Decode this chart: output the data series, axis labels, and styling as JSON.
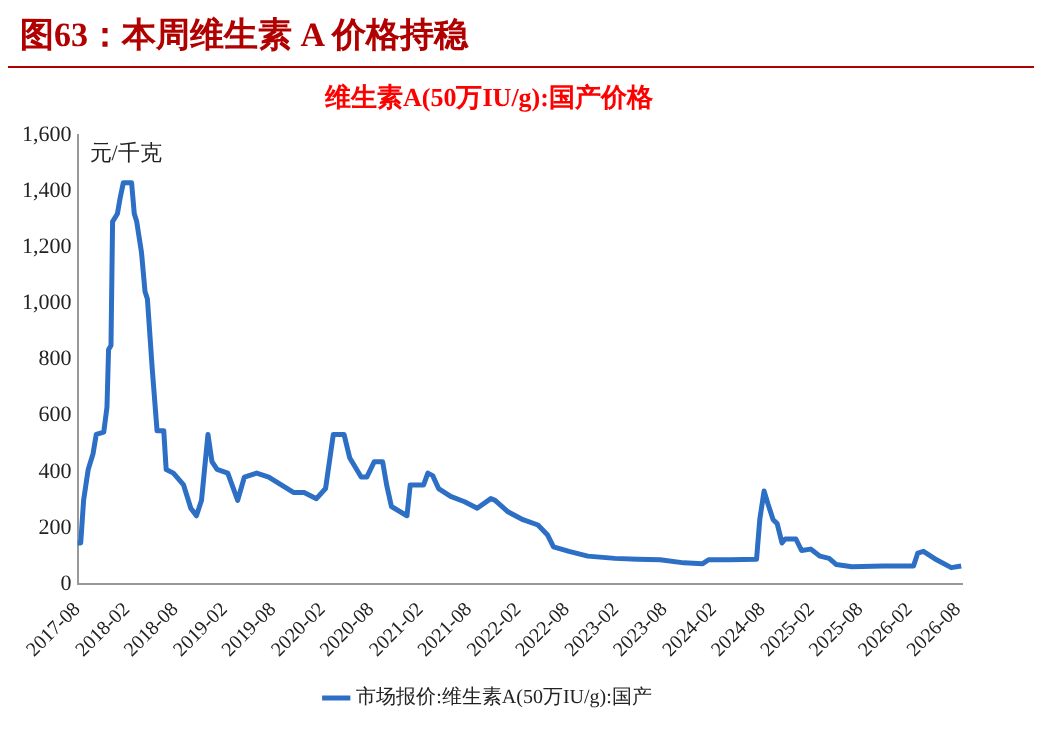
{
  "chart_data": {
    "type": "line",
    "title": "图63：本周维生素 A 价格持稳",
    "subtitle": "维生素A(50万IU/g):国产价格",
    "ylabel": "元/千克",
    "x": [
      "2017-08-01",
      "2017-08-13",
      "2017-08-24",
      "2017-09-10",
      "2017-09-28",
      "2017-10-10",
      "2017-11-07",
      "2017-11-19",
      "2017-11-25",
      "2017-12-04",
      "2017-12-10",
      "2017-12-28",
      "2018-01-07",
      "2018-01-19",
      "2018-02-19",
      "2018-03-01",
      "2018-03-10",
      "2018-03-28",
      "2018-04-10",
      "2018-04-19",
      "2018-05-07",
      "2018-05-25",
      "2018-06-19",
      "2018-06-28",
      "2018-07-25",
      "2018-09-01",
      "2018-09-28",
      "2018-10-19",
      "2018-11-07",
      "2018-12-01",
      "2018-12-16",
      "2019-01-04",
      "2019-02-13",
      "2019-03-22",
      "2019-04-16",
      "2019-06-01",
      "2019-07-16",
      "2019-10-16",
      "2019-11-25",
      "2020-01-10",
      "2020-02-13",
      "2020-03-13",
      "2020-04-22",
      "2020-05-13",
      "2020-06-25",
      "2020-07-16",
      "2020-08-13",
      "2020-09-13",
      "2020-09-28",
      "2020-10-16",
      "2020-12-13",
      "2020-12-25",
      "2021-02-13",
      "2021-03-01",
      "2021-03-19",
      "2021-04-10",
      "2021-05-25",
      "2021-07-16",
      "2021-09-01",
      "2021-10-22",
      "2021-11-07",
      "2021-12-25",
      "2022-02-19",
      "2022-04-16",
      "2022-05-22",
      "2022-06-13",
      "2022-08-10",
      "2022-10-19",
      "2023-01-28",
      "2023-04-22",
      "2023-07-16",
      "2023-10-13",
      "2023-12-22",
      "2024-01-13",
      "2024-04-01",
      "2024-07-10",
      "2024-07-22",
      "2024-08-07",
      "2024-08-22",
      "2024-09-10",
      "2024-09-25",
      "2024-10-13",
      "2024-10-25",
      "2024-12-04",
      "2024-12-25",
      "2025-01-28",
      "2025-03-04",
      "2025-04-07",
      "2025-05-04",
      "2025-07-01",
      "2025-10-25",
      "2026-02-16",
      "2026-03-04",
      "2026-03-25",
      "2026-05-13",
      "2026-07-07",
      "2026-08-13"
    ],
    "series": [
      {
        "name": "市场报价:维生素A(50万IU/g):国产",
        "color": "#2e6fc6",
        "values": [
          146,
          146,
          300,
          408,
          464,
          533,
          541,
          630,
          836,
          850,
          1292,
          1320,
          1375,
          1430,
          1430,
          1320,
          1292,
          1181,
          1043,
          1016,
          767,
          546,
          546,
          408,
          395,
          353,
          270,
          243,
          298,
          533,
          436,
          408,
          395,
          298,
          381,
          395,
          381,
          326,
          326,
          304,
          340,
          533,
          533,
          450,
          381,
          381,
          436,
          436,
          353,
          276,
          243,
          353,
          353,
          395,
          386,
          340,
          312,
          293,
          270,
          304,
          298,
          257,
          229,
          210,
          174,
          132,
          116,
          99,
          91,
          88,
          86,
          75,
          72,
          86,
          86,
          88,
          229,
          331,
          284,
          229,
          215,
          146,
          160,
          160,
          119,
          124,
          99,
          91,
          69,
          61,
          64,
          64,
          110,
          116,
          86,
          58,
          64
        ]
      }
    ],
    "xlim": [
      "2017-08-01",
      "2026-08-16"
    ],
    "xticks": [
      "2017-08",
      "2018-02",
      "2018-08",
      "2019-02",
      "2019-08",
      "2020-02",
      "2020-08",
      "2021-02",
      "2021-08",
      "2022-02",
      "2022-08",
      "2023-02",
      "2023-08",
      "2024-02",
      "2024-08",
      "2025-02",
      "2025-08",
      "2026-02",
      "2026-08"
    ],
    "ylim": [
      0,
      1600
    ],
    "yticks": [
      0,
      200,
      400,
      600,
      800,
      {
        "value": 1000,
        "label": "1,000"
      },
      {
        "value": 1200,
        "label": "1,200"
      },
      {
        "value": 1400,
        "label": "1,400"
      },
      {
        "value": 1600,
        "label": "1,600"
      }
    ],
    "grid": false,
    "legend": "bottom",
    "marker": "none",
    "line_style": "solid"
  }
}
